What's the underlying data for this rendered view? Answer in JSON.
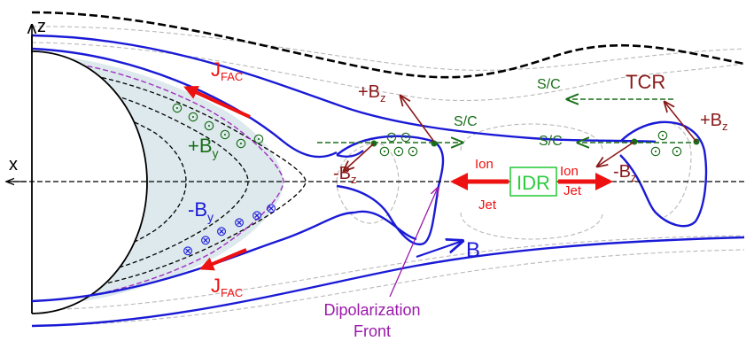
{
  "axes": {
    "z": "z",
    "x": "x"
  },
  "labels": {
    "jfac_top": {
      "main": "J",
      "sub": "FAC"
    },
    "jfac_bottom": {
      "main": "J",
      "sub": "FAC"
    },
    "plus_by": {
      "main": "+B",
      "sub": "y"
    },
    "minus_by": {
      "main": "-B",
      "sub": "y"
    },
    "plus_bz_left": {
      "main": "+B",
      "sub": "z"
    },
    "minus_bz_left": {
      "main": "-B",
      "sub": "z"
    },
    "plus_bz_right": {
      "main": "+B",
      "sub": "z"
    },
    "minus_bz_right": {
      "main": "-B",
      "sub": "z"
    },
    "sc_top": "S/C",
    "sc_mid": "S/C",
    "sc_right": "S/C",
    "tcr": "TCR",
    "ion_left": "Ion",
    "jet_left": "Jet",
    "ion_right": "Ion",
    "jet_right": "Jet",
    "idr": "IDR",
    "b_field": "B",
    "dipolarization_line1": "Dipolarization",
    "dipolarization_line2": "Front"
  },
  "symbols": {
    "out_of_page": "⊙",
    "into_page": "⊗"
  },
  "colors": {
    "field_line": "#1a1ad6",
    "sheet_boundary": "#000000",
    "guide_line": "#b8b8b8",
    "shade": "#dde9ec",
    "hall_boundary": "#a030c0",
    "green": "#1a6e1a",
    "red": "#ee1111",
    "darkred": "#8b1a1a",
    "magenta": "#9a1aaa",
    "idr_box": "#2ecc40"
  }
}
